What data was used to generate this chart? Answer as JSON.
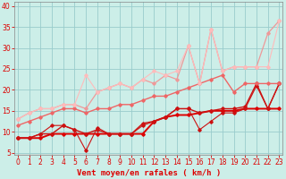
{
  "bg_color": "#cceee8",
  "grid_color": "#99cccc",
  "x_values": [
    0,
    1,
    2,
    3,
    4,
    5,
    6,
    7,
    8,
    9,
    10,
    11,
    12,
    13,
    14,
    15,
    16,
    17,
    18,
    19,
    20,
    21,
    22,
    23
  ],
  "lines": [
    {
      "y": [
        8.5,
        8.5,
        8.5,
        9.5,
        9.5,
        9.5,
        9.5,
        9.5,
        9.5,
        9.5,
        9.5,
        9.5,
        12.5,
        13.5,
        14.0,
        14.0,
        14.5,
        15.0,
        15.0,
        15.0,
        15.5,
        15.5,
        15.5,
        15.5
      ],
      "color": "#dd0000",
      "lw": 1.4,
      "marker": "D",
      "ms": 1.8
    },
    {
      "y": [
        8.5,
        8.5,
        9.5,
        9.5,
        11.5,
        10.5,
        9.5,
        10.5,
        9.5,
        9.5,
        9.5,
        12.0,
        12.5,
        13.5,
        15.5,
        15.5,
        14.5,
        15.0,
        15.5,
        15.5,
        16.0,
        21.5,
        15.5,
        21.5
      ],
      "color": "#cc1111",
      "lw": 1.0,
      "marker": "D",
      "ms": 1.8
    },
    {
      "y": [
        8.5,
        8.5,
        9.5,
        11.5,
        11.5,
        10.5,
        5.5,
        11.0,
        9.5,
        9.5,
        9.5,
        11.5,
        12.5,
        13.5,
        15.5,
        15.5,
        10.5,
        12.5,
        14.5,
        14.5,
        15.5,
        21.0,
        15.5,
        21.5
      ],
      "color": "#cc1111",
      "lw": 0.8,
      "marker": "D",
      "ms": 1.8
    },
    {
      "y": [
        11.5,
        12.5,
        13.5,
        14.5,
        15.5,
        15.5,
        14.5,
        15.5,
        15.5,
        16.5,
        16.5,
        17.5,
        18.5,
        18.5,
        19.5,
        20.5,
        21.5,
        22.5,
        23.5,
        19.5,
        21.5,
        21.5,
        21.5,
        21.5
      ],
      "color": "#ee6666",
      "lw": 1.0,
      "marker": "D",
      "ms": 1.8
    },
    {
      "y": [
        13.0,
        14.5,
        15.5,
        15.5,
        16.5,
        16.5,
        15.5,
        19.5,
        20.5,
        21.5,
        20.5,
        22.5,
        21.5,
        23.5,
        22.5,
        30.5,
        21.5,
        34.5,
        24.5,
        25.5,
        25.5,
        25.5,
        33.5,
        36.5
      ],
      "color": "#ee9999",
      "lw": 0.9,
      "marker": "D",
      "ms": 1.8
    },
    {
      "y": [
        13.0,
        14.5,
        15.5,
        15.5,
        16.5,
        16.5,
        23.5,
        19.5,
        20.5,
        21.5,
        20.5,
        22.5,
        24.5,
        23.5,
        24.5,
        30.5,
        21.5,
        34.5,
        24.5,
        25.5,
        25.5,
        25.5,
        25.5,
        36.5
      ],
      "color": "#ffbbbb",
      "lw": 0.8,
      "marker": "D",
      "ms": 1.8
    }
  ],
  "xlim": [
    -0.3,
    23.3
  ],
  "ylim": [
    4.5,
    41.0
  ],
  "yticks": [
    5,
    10,
    15,
    20,
    25,
    30,
    35,
    40
  ],
  "xticks": [
    0,
    1,
    2,
    3,
    4,
    5,
    6,
    7,
    8,
    9,
    10,
    11,
    12,
    13,
    14,
    15,
    16,
    17,
    18,
    19,
    20,
    21,
    22,
    23
  ],
  "tick_color": "#dd0000",
  "xlabel": "Vent moyen/en rafales ( km/h )",
  "xlabel_fontsize": 6.5,
  "tick_fontsize": 5.5,
  "spine_color": "#888888",
  "axis_line_color": "#dd0000"
}
